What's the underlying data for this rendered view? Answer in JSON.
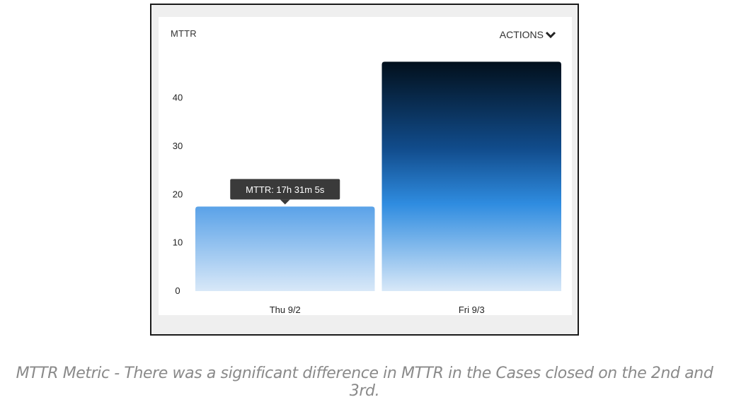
{
  "chart_data": {
    "type": "bar",
    "title": "MTTR",
    "categories": [
      "Thu 9/2",
      "Fri 9/3"
    ],
    "series": [
      {
        "values": [
          17.5,
          47.5
        ]
      }
    ],
    "xlabel": "",
    "ylabel": "",
    "ylim": [
      0,
      48
    ],
    "yticks": [
      0,
      10,
      20,
      30,
      40
    ],
    "grid": false,
    "legend": "none",
    "colors": {
      "light": "#5aa2e8",
      "mid": "#2f8ce0",
      "dark": "#02101c",
      "fade": "#d8e8f8"
    },
    "tooltip": {
      "category": "Thu 9/2",
      "text": "MTTR: 17h 31m 5s"
    }
  },
  "header": {
    "actions_label": "ACTIONS",
    "actions_icon": "chevron-down-icon"
  },
  "caption": "MTTR Metric - There was a significant difference in MTTR in the Cases closed on the 2nd and 3rd."
}
